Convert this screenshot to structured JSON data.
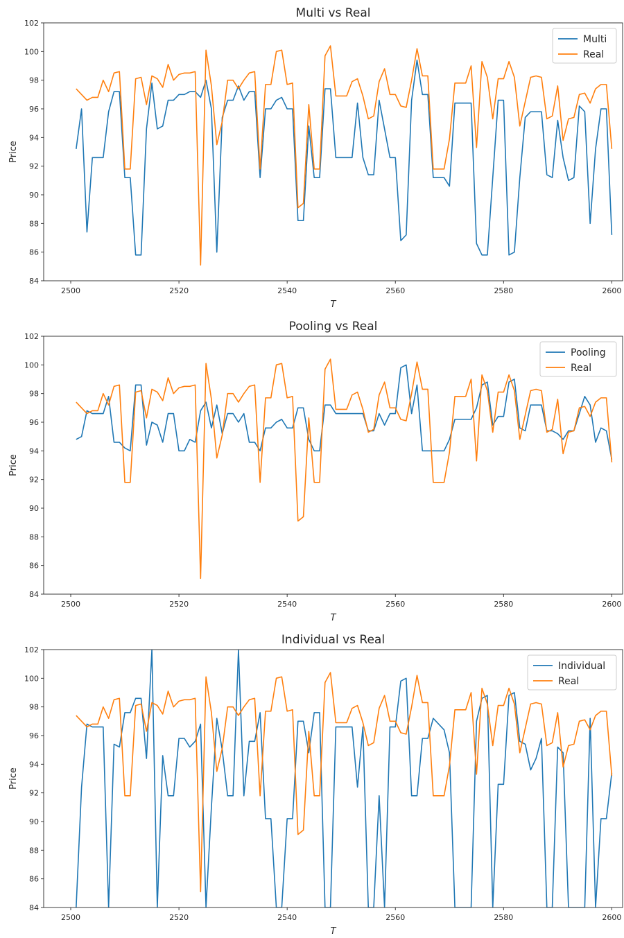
{
  "chart_data": [
    {
      "type": "line",
      "title": "Multi vs Real",
      "xlabel": "T",
      "ylabel": "Price",
      "xlim": [
        2495,
        2602
      ],
      "ylim": [
        84,
        102
      ],
      "xticks": [
        2500,
        2520,
        2540,
        2560,
        2580,
        2600
      ],
      "yticks": [
        84,
        86,
        88,
        90,
        92,
        94,
        96,
        98,
        100,
        102
      ],
      "grid": false,
      "legend_position": "top-right",
      "x_start": 2501,
      "series": [
        {
          "name": "Multi",
          "color": "#1f77b4",
          "values": [
            93.2,
            96.0,
            87.4,
            92.6,
            92.6,
            92.6,
            95.8,
            97.2,
            97.2,
            91.2,
            91.2,
            85.8,
            85.8,
            94.6,
            97.8,
            94.6,
            94.8,
            96.6,
            96.6,
            97.0,
            97.0,
            97.2,
            97.2,
            96.8,
            98.0,
            96.0,
            86.0,
            95.4,
            96.6,
            96.6,
            97.6,
            96.6,
            97.2,
            97.2,
            91.2,
            96.0,
            96.0,
            96.6,
            96.8,
            96.0,
            96.0,
            88.2,
            88.2,
            94.8,
            91.2,
            91.2,
            97.4,
            97.4,
            92.6,
            92.6,
            92.6,
            92.6,
            96.4,
            92.6,
            91.4,
            91.4,
            96.6,
            94.6,
            92.6,
            92.6,
            86.8,
            87.2,
            96.6,
            99.4,
            97.0,
            97.0,
            91.2,
            91.2,
            91.2,
            90.6,
            96.4,
            96.4,
            96.4,
            96.4,
            86.6,
            85.8,
            85.8,
            91.2,
            96.6,
            96.6,
            85.8,
            86.0,
            91.2,
            95.4,
            95.8,
            95.8,
            95.8,
            91.4,
            91.2,
            95.2,
            92.6,
            91.0,
            91.2,
            96.2,
            95.8,
            88.0,
            93.2,
            96.0,
            96.0,
            87.2
          ]
        },
        {
          "name": "Real",
          "color": "#ff7f0e",
          "values": [
            97.4,
            97.0,
            96.6,
            96.8,
            96.8,
            98.0,
            97.2,
            98.5,
            98.6,
            91.8,
            91.8,
            98.1,
            98.2,
            96.3,
            98.3,
            98.1,
            97.5,
            99.1,
            98.0,
            98.4,
            98.5,
            98.5,
            98.6,
            85.1,
            100.1,
            97.6,
            93.5,
            95.1,
            98.0,
            98.0,
            97.4,
            98.0,
            98.5,
            98.6,
            91.8,
            97.7,
            97.7,
            100.0,
            100.1,
            97.7,
            97.8,
            89.1,
            89.4,
            96.3,
            91.8,
            91.8,
            99.7,
            100.4,
            96.9,
            96.9,
            96.9,
            97.9,
            98.1,
            96.9,
            95.3,
            95.5,
            97.9,
            98.8,
            97.0,
            97.0,
            96.2,
            96.1,
            98.0,
            100.2,
            98.3,
            98.3,
            91.8,
            91.8,
            91.8,
            93.9,
            97.8,
            97.8,
            97.8,
            99.0,
            93.3,
            99.3,
            98.2,
            95.3,
            98.1,
            98.1,
            99.3,
            98.2,
            94.8,
            96.5,
            98.2,
            98.3,
            98.2,
            95.3,
            95.5,
            97.6,
            93.8,
            95.3,
            95.4,
            97.0,
            97.1,
            96.4,
            97.4,
            97.7,
            97.7,
            93.2
          ]
        }
      ]
    },
    {
      "type": "line",
      "title": "Pooling vs Real",
      "xlabel": "T",
      "ylabel": "Price",
      "xlim": [
        2495,
        2602
      ],
      "ylim": [
        84,
        102
      ],
      "xticks": [
        2500,
        2520,
        2540,
        2560,
        2580,
        2600
      ],
      "yticks": [
        84,
        86,
        88,
        90,
        92,
        94,
        96,
        98,
        100,
        102
      ],
      "grid": false,
      "legend_position": "top-right",
      "x_start": 2501,
      "series": [
        {
          "name": "Pooling",
          "color": "#1f77b4",
          "values": [
            94.8,
            95.0,
            96.8,
            96.6,
            96.6,
            96.6,
            97.8,
            94.6,
            94.6,
            94.2,
            94.0,
            98.6,
            98.6,
            94.4,
            96.0,
            95.8,
            94.6,
            96.6,
            96.6,
            94.0,
            94.0,
            94.8,
            94.6,
            96.8,
            97.4,
            95.6,
            97.2,
            95.2,
            96.6,
            96.6,
            96.0,
            96.6,
            94.6,
            94.6,
            94.0,
            95.6,
            95.6,
            96.0,
            96.2,
            95.6,
            95.6,
            97.0,
            97.0,
            94.8,
            94.0,
            94.0,
            97.2,
            97.2,
            96.6,
            96.6,
            96.6,
            96.6,
            96.6,
            96.6,
            95.4,
            95.4,
            96.6,
            95.8,
            96.6,
            96.6,
            99.8,
            100.0,
            96.6,
            98.6,
            94.0,
            94.0,
            94.0,
            94.0,
            94.0,
            94.8,
            96.2,
            96.2,
            96.2,
            96.2,
            97.0,
            98.6,
            98.8,
            95.8,
            96.4,
            96.4,
            98.8,
            99.0,
            95.6,
            95.4,
            97.2,
            97.2,
            97.2,
            95.4,
            95.4,
            95.2,
            94.8,
            95.4,
            95.4,
            96.6,
            97.8,
            97.2,
            94.6,
            95.6,
            95.4,
            93.4
          ]
        },
        {
          "name": "Real",
          "color": "#ff7f0e",
          "values": [
            97.4,
            97.0,
            96.6,
            96.8,
            96.8,
            98.0,
            97.2,
            98.5,
            98.6,
            91.8,
            91.8,
            98.1,
            98.2,
            96.3,
            98.3,
            98.1,
            97.5,
            99.1,
            98.0,
            98.4,
            98.5,
            98.5,
            98.6,
            85.1,
            100.1,
            97.6,
            93.5,
            95.1,
            98.0,
            98.0,
            97.4,
            98.0,
            98.5,
            98.6,
            91.8,
            97.7,
            97.7,
            100.0,
            100.1,
            97.7,
            97.8,
            89.1,
            89.4,
            96.3,
            91.8,
            91.8,
            99.7,
            100.4,
            96.9,
            96.9,
            96.9,
            97.9,
            98.1,
            96.9,
            95.3,
            95.5,
            97.9,
            98.8,
            97.0,
            97.0,
            96.2,
            96.1,
            98.0,
            100.2,
            98.3,
            98.3,
            91.8,
            91.8,
            91.8,
            93.9,
            97.8,
            97.8,
            97.8,
            99.0,
            93.3,
            99.3,
            98.2,
            95.3,
            98.1,
            98.1,
            99.3,
            98.2,
            94.8,
            96.5,
            98.2,
            98.3,
            98.2,
            95.3,
            95.5,
            97.6,
            93.8,
            95.3,
            95.4,
            97.0,
            97.1,
            96.4,
            97.4,
            97.7,
            97.7,
            93.2
          ]
        }
      ]
    },
    {
      "type": "line",
      "title": "Individual vs Real",
      "xlabel": "T",
      "ylabel": "Price",
      "xlim": [
        2495,
        2602
      ],
      "ylim": [
        84,
        102
      ],
      "xticks": [
        2500,
        2520,
        2540,
        2560,
        2580,
        2600
      ],
      "yticks": [
        84,
        86,
        88,
        90,
        92,
        94,
        96,
        98,
        100,
        102
      ],
      "grid": false,
      "legend_position": "top-right",
      "x_start": 2501,
      "series": [
        {
          "name": "Individual",
          "color": "#1f77b4",
          "values": [
            84.0,
            92.4,
            96.8,
            96.6,
            96.6,
            96.6,
            84.0,
            95.4,
            95.2,
            97.6,
            97.6,
            98.6,
            98.6,
            94.4,
            102.0,
            84.0,
            94.6,
            91.8,
            91.8,
            95.8,
            95.8,
            95.2,
            95.6,
            96.8,
            84.0,
            91.0,
            97.2,
            95.0,
            91.8,
            91.8,
            102.0,
            91.8,
            95.6,
            95.6,
            97.6,
            90.2,
            90.2,
            84.0,
            84.0,
            90.2,
            90.2,
            97.0,
            97.0,
            94.8,
            97.6,
            97.6,
            84.0,
            84.0,
            96.6,
            96.6,
            96.6,
            96.6,
            92.4,
            96.6,
            84.0,
            84.0,
            91.8,
            84.0,
            96.6,
            96.6,
            99.8,
            100.0,
            91.8,
            91.8,
            95.8,
            95.8,
            97.2,
            96.8,
            96.4,
            94.8,
            84.0,
            84.0,
            84.0,
            84.0,
            97.0,
            98.6,
            98.8,
            84.0,
            92.6,
            92.6,
            98.8,
            99.0,
            95.6,
            95.4,
            93.6,
            94.4,
            95.8,
            84.0,
            84.0,
            95.2,
            94.8,
            84.0,
            84.0,
            84.0,
            84.0,
            97.2,
            84.0,
            90.2,
            90.2,
            93.4
          ]
        },
        {
          "name": "Real",
          "color": "#ff7f0e",
          "values": [
            97.4,
            97.0,
            96.6,
            96.8,
            96.8,
            98.0,
            97.2,
            98.5,
            98.6,
            91.8,
            91.8,
            98.1,
            98.2,
            96.3,
            98.3,
            98.1,
            97.5,
            99.1,
            98.0,
            98.4,
            98.5,
            98.5,
            98.6,
            85.1,
            100.1,
            97.6,
            93.5,
            95.1,
            98.0,
            98.0,
            97.4,
            98.0,
            98.5,
            98.6,
            91.8,
            97.7,
            97.7,
            100.0,
            100.1,
            97.7,
            97.8,
            89.1,
            89.4,
            96.3,
            91.8,
            91.8,
            99.7,
            100.4,
            96.9,
            96.9,
            96.9,
            97.9,
            98.1,
            96.9,
            95.3,
            95.5,
            97.9,
            98.8,
            97.0,
            97.0,
            96.2,
            96.1,
            98.0,
            100.2,
            98.3,
            98.3,
            91.8,
            91.8,
            91.8,
            93.9,
            97.8,
            97.8,
            97.8,
            99.0,
            93.3,
            99.3,
            98.2,
            95.3,
            98.1,
            98.1,
            99.3,
            98.2,
            94.8,
            96.5,
            98.2,
            98.3,
            98.2,
            95.3,
            95.5,
            97.6,
            93.8,
            95.3,
            95.4,
            97.0,
            97.1,
            96.4,
            97.4,
            97.7,
            97.7,
            93.2
          ]
        }
      ]
    }
  ]
}
